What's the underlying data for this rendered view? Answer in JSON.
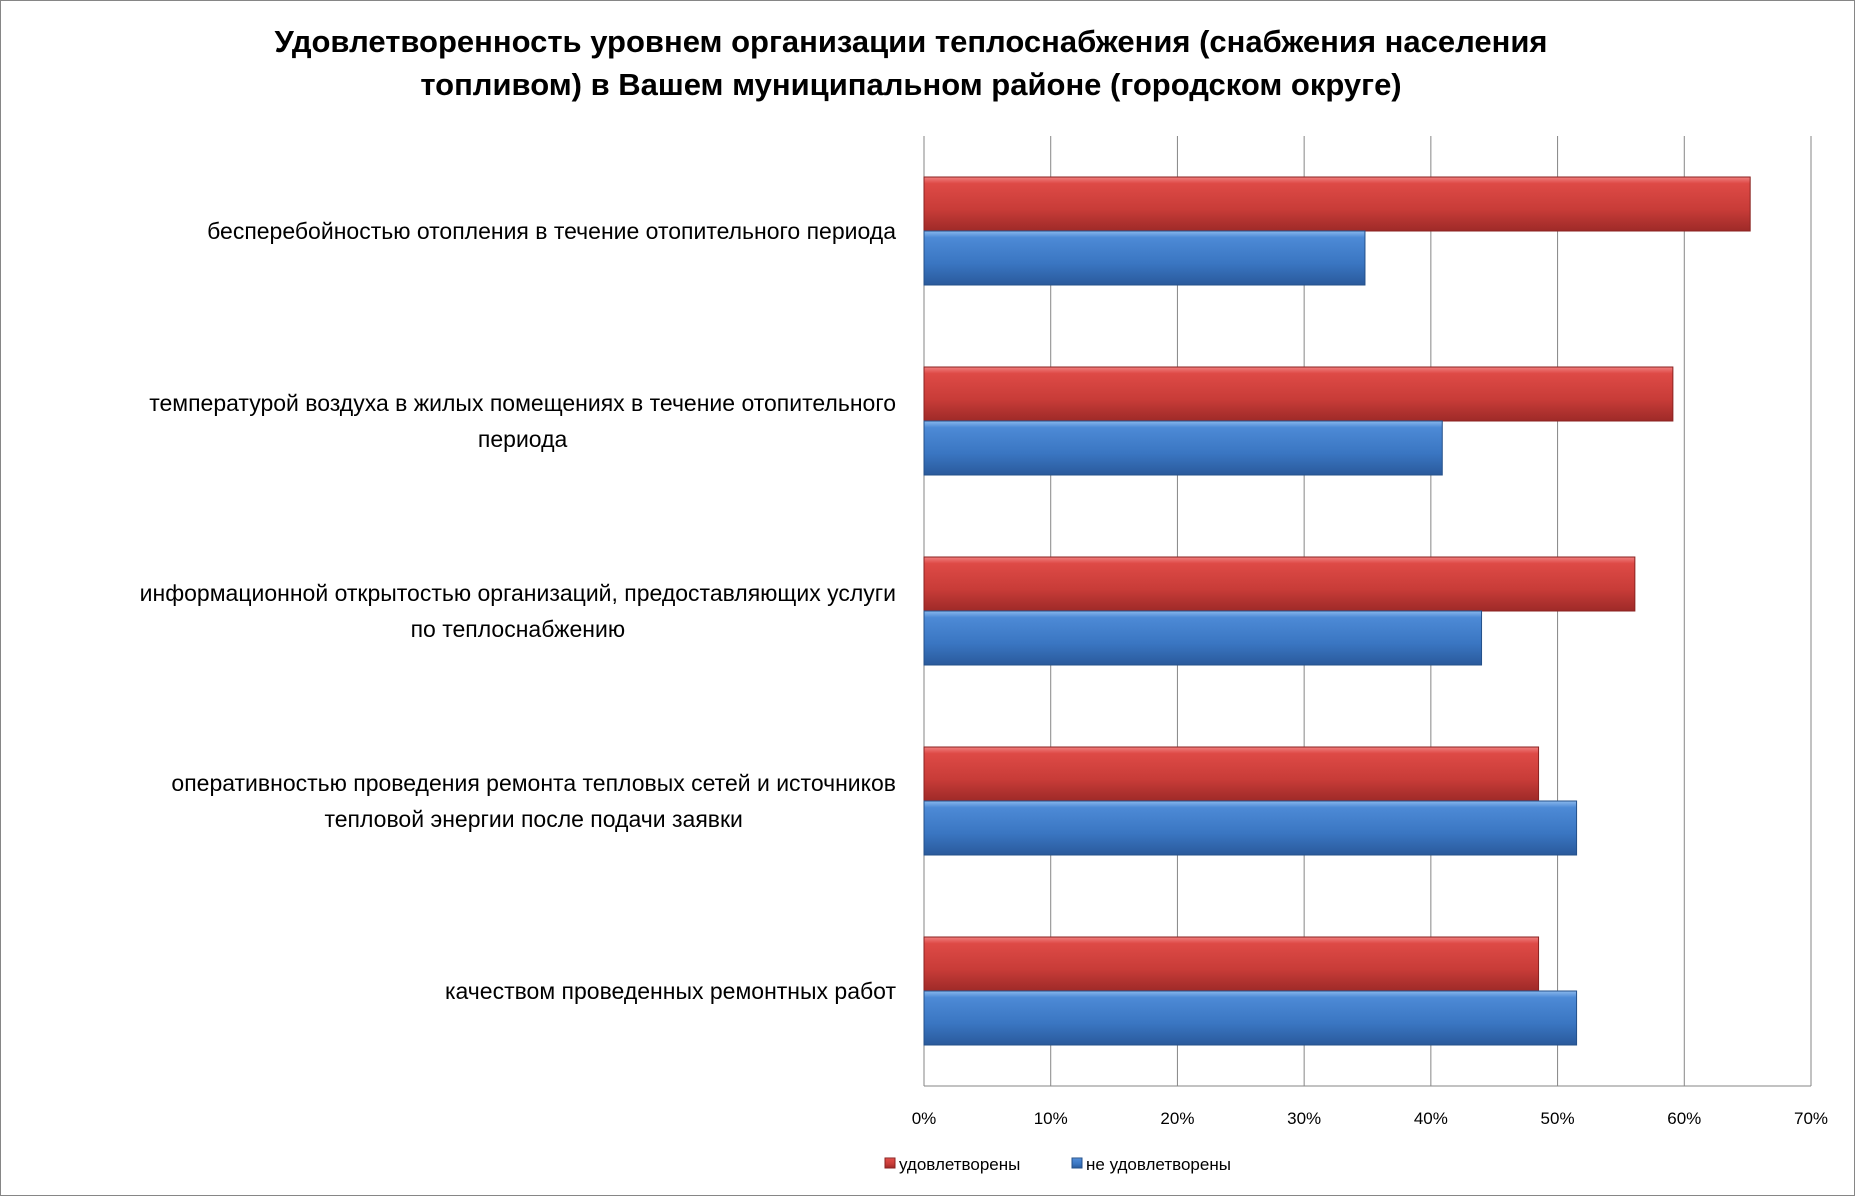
{
  "chart_data": {
    "type": "bar",
    "orientation": "horizontal",
    "title_lines": [
      "Удовлетворенность уровнем организации теплоснабжения (снабжения населения",
      "топливом) в Вашем муниципальном районе (городском округе)"
    ],
    "categories": [
      [
        "бесперебойностью  отопления в течение отопительного периода"
      ],
      [
        "температурой  воздуха в жилых помещениях в течение отопительного",
        "периода"
      ],
      [
        "информационной открытостью организаций, предоставляющих услуги",
        "по теплоснабжению"
      ],
      [
        "оперативностью проведения ремонта тепловых сетей и источников",
        "тепловой энергии после подачи заявки"
      ],
      [
        "качеством проведенных ремонтных работ"
      ]
    ],
    "series": [
      {
        "name": "удовлетворены",
        "color": "#c0392b",
        "values": [
          65.2,
          59.1,
          56.1,
          48.5,
          48.5
        ]
      },
      {
        "name": "не удовлетворены",
        "color": "#3b78c4",
        "values": [
          34.8,
          40.9,
          44.0,
          51.5,
          51.5
        ]
      }
    ],
    "xlim": [
      0,
      70
    ],
    "xticks": [
      0,
      10,
      20,
      30,
      40,
      50,
      60,
      70
    ],
    "xtick_labels": [
      "0%",
      "10%",
      "20%",
      "30%",
      "40%",
      "50%",
      "60%",
      "70%"
    ],
    "xlabel": "",
    "ylabel": "",
    "grid": true,
    "legend_position": "bottom"
  }
}
